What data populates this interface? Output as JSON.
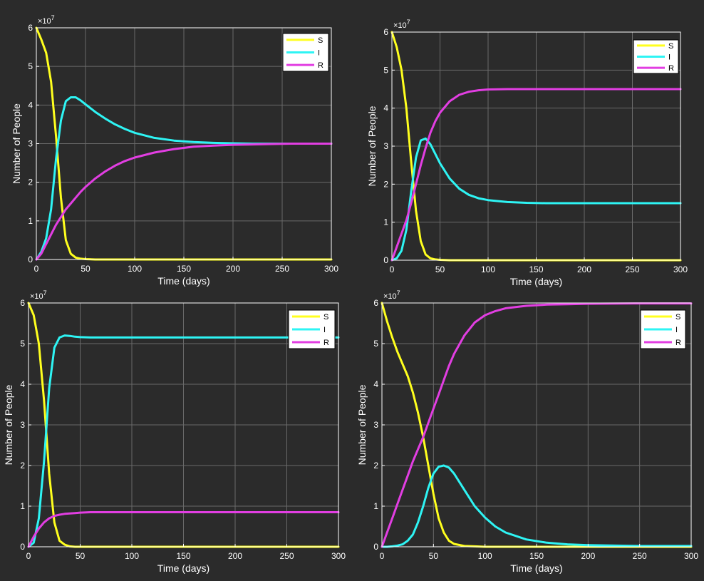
{
  "colors": {
    "background": "#2b2b2b",
    "axes_bg": "#2b2b2b",
    "axis_line": "#ffffff",
    "grid": "#6a6a6a",
    "text": "#ffffff",
    "S": "#ffff1e",
    "I": "#2ef4f4",
    "R": "#e23ee2",
    "legend_bg": "#ffffff",
    "legend_text": "#000000"
  },
  "exponent_label": "×10",
  "exponent_power": "7",
  "chart_data": [
    {
      "type": "line",
      "title": "",
      "xlabel": "Time (days)",
      "ylabel": "Number of People",
      "xlim": [
        0,
        300
      ],
      "ylim": [
        0,
        6
      ],
      "y_unit_multiplier": 10000000,
      "xticks": [
        "0",
        "50",
        "100",
        "150",
        "200",
        "250",
        "300"
      ],
      "yticks": [
        "0",
        "1",
        "2",
        "3",
        "4",
        "5",
        "6"
      ],
      "grid": true,
      "legend_position": "top-right",
      "x": [
        0,
        5,
        10,
        15,
        20,
        25,
        30,
        35,
        40,
        45,
        50,
        60,
        70,
        80,
        90,
        100,
        120,
        140,
        160,
        180,
        200,
        220,
        240,
        260,
        280,
        300
      ],
      "series": [
        {
          "name": "S",
          "values": [
            6.0,
            5.7,
            5.35,
            4.6,
            3.2,
            1.6,
            0.5,
            0.15,
            0.05,
            0.02,
            0.01,
            0,
            0,
            0,
            0,
            0,
            0,
            0,
            0,
            0,
            0,
            0,
            0,
            0,
            0,
            0
          ]
        },
        {
          "name": "I",
          "values": [
            0.0,
            0.2,
            0.55,
            1.3,
            2.6,
            3.6,
            4.1,
            4.2,
            4.2,
            4.12,
            4.02,
            3.82,
            3.65,
            3.5,
            3.38,
            3.28,
            3.15,
            3.08,
            3.04,
            3.02,
            3.01,
            3.0,
            3.0,
            3.0,
            3.0,
            3.0
          ]
        },
        {
          "name": "R",
          "values": [
            0.0,
            0.15,
            0.4,
            0.65,
            0.9,
            1.1,
            1.3,
            1.45,
            1.6,
            1.75,
            1.88,
            2.1,
            2.28,
            2.43,
            2.55,
            2.64,
            2.77,
            2.86,
            2.92,
            2.95,
            2.97,
            2.98,
            2.99,
            3.0,
            3.0,
            3.0
          ]
        }
      ]
    },
    {
      "type": "line",
      "title": "",
      "xlabel": "Time (days)",
      "ylabel": "Number of People",
      "xlim": [
        0,
        300
      ],
      "ylim": [
        0,
        6
      ],
      "y_unit_multiplier": 10000000,
      "xticks": [
        "0",
        "50",
        "100",
        "150",
        "200",
        "250",
        "300"
      ],
      "yticks": [
        "0",
        "1",
        "2",
        "3",
        "4",
        "5",
        "6"
      ],
      "grid": true,
      "legend_position": "top-right",
      "x": [
        0,
        5,
        10,
        15,
        20,
        25,
        30,
        35,
        40,
        45,
        50,
        60,
        70,
        80,
        90,
        100,
        120,
        140,
        160,
        180,
        200,
        220,
        240,
        260,
        280,
        300
      ],
      "series": [
        {
          "name": "S",
          "values": [
            6.0,
            5.6,
            5.0,
            4.0,
            2.6,
            1.3,
            0.5,
            0.15,
            0.05,
            0.02,
            0.01,
            0,
            0,
            0,
            0,
            0,
            0,
            0,
            0,
            0,
            0,
            0,
            0,
            0,
            0,
            0
          ]
        },
        {
          "name": "I",
          "values": [
            0.0,
            0.05,
            0.25,
            0.8,
            1.8,
            2.7,
            3.15,
            3.2,
            3.05,
            2.8,
            2.55,
            2.15,
            1.88,
            1.72,
            1.63,
            1.58,
            1.53,
            1.51,
            1.5,
            1.5,
            1.5,
            1.5,
            1.5,
            1.5,
            1.5,
            1.5
          ]
        },
        {
          "name": "R",
          "values": [
            0.0,
            0.35,
            0.7,
            1.05,
            1.5,
            2.0,
            2.5,
            2.95,
            3.35,
            3.65,
            3.88,
            4.18,
            4.35,
            4.43,
            4.47,
            4.49,
            4.5,
            4.5,
            4.5,
            4.5,
            4.5,
            4.5,
            4.5,
            4.5,
            4.5,
            4.5
          ]
        }
      ]
    },
    {
      "type": "line",
      "title": "",
      "xlabel": "Time (days)",
      "ylabel": "Number of People",
      "xlim": [
        0,
        300
      ],
      "ylim": [
        0,
        6
      ],
      "y_unit_multiplier": 10000000,
      "xticks": [
        "0",
        "50",
        "100",
        "150",
        "200",
        "250",
        "300"
      ],
      "yticks": [
        "0",
        "1",
        "2",
        "3",
        "4",
        "5",
        "6"
      ],
      "grid": true,
      "legend_position": "top-right",
      "x": [
        0,
        5,
        10,
        15,
        20,
        25,
        30,
        35,
        40,
        45,
        50,
        60,
        70,
        80,
        90,
        100,
        120,
        140,
        160,
        180,
        200,
        220,
        240,
        260,
        280,
        300
      ],
      "series": [
        {
          "name": "S",
          "values": [
            6.0,
            5.7,
            5.0,
            3.6,
            1.8,
            0.6,
            0.15,
            0.05,
            0.01,
            0,
            0,
            0,
            0,
            0,
            0,
            0,
            0,
            0,
            0,
            0,
            0,
            0,
            0,
            0,
            0,
            0
          ]
        },
        {
          "name": "I",
          "values": [
            0.0,
            0.1,
            0.7,
            2.1,
            3.9,
            4.9,
            5.15,
            5.2,
            5.19,
            5.17,
            5.16,
            5.15,
            5.15,
            5.15,
            5.15,
            5.15,
            5.15,
            5.15,
            5.15,
            5.15,
            5.15,
            5.15,
            5.15,
            5.15,
            5.15,
            5.15
          ]
        },
        {
          "name": "R",
          "values": [
            0.0,
            0.25,
            0.45,
            0.6,
            0.7,
            0.76,
            0.79,
            0.81,
            0.82,
            0.83,
            0.84,
            0.85,
            0.85,
            0.85,
            0.85,
            0.85,
            0.85,
            0.85,
            0.85,
            0.85,
            0.85,
            0.85,
            0.85,
            0.85,
            0.85,
            0.85
          ]
        }
      ]
    },
    {
      "type": "line",
      "title": "",
      "xlabel": "Time (days)",
      "ylabel": "Number of People",
      "xlim": [
        0,
        300
      ],
      "ylim": [
        0,
        6
      ],
      "y_unit_multiplier": 10000000,
      "xticks": [
        "0",
        "50",
        "100",
        "150",
        "200",
        "250",
        "300"
      ],
      "yticks": [
        "0",
        "1",
        "2",
        "3",
        "4",
        "5",
        "6"
      ],
      "grid": true,
      "legend_position": "top-right",
      "x": [
        0,
        5,
        10,
        15,
        20,
        25,
        30,
        35,
        40,
        45,
        50,
        55,
        60,
        65,
        70,
        80,
        90,
        100,
        110,
        120,
        140,
        160,
        180,
        200,
        250,
        300
      ],
      "series": [
        {
          "name": "S",
          "values": [
            6.0,
            5.55,
            5.15,
            4.8,
            4.5,
            4.2,
            3.8,
            3.3,
            2.7,
            2.0,
            1.3,
            0.7,
            0.35,
            0.15,
            0.07,
            0.02,
            0.01,
            0,
            0,
            0,
            0,
            0,
            0,
            0,
            0,
            0
          ]
        },
        {
          "name": "I",
          "values": [
            0.0,
            0.0,
            0.01,
            0.03,
            0.06,
            0.15,
            0.3,
            0.6,
            1.0,
            1.45,
            1.8,
            1.97,
            2.0,
            1.95,
            1.8,
            1.4,
            1.0,
            0.72,
            0.5,
            0.35,
            0.18,
            0.1,
            0.06,
            0.04,
            0.02,
            0.02
          ]
        },
        {
          "name": "R",
          "values": [
            0.0,
            0.35,
            0.7,
            1.05,
            1.4,
            1.75,
            2.1,
            2.4,
            2.7,
            3.05,
            3.4,
            3.75,
            4.1,
            4.45,
            4.75,
            5.2,
            5.52,
            5.7,
            5.8,
            5.87,
            5.93,
            5.96,
            5.97,
            5.98,
            5.99,
            5.99
          ]
        }
      ]
    }
  ]
}
